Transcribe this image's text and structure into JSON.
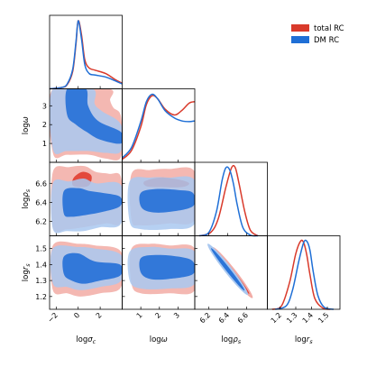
{
  "chart_data": {
    "type": "corner",
    "parameters": [
      {
        "key": "sigma",
        "label_main": "log",
        "label_sym": "σ",
        "label_sub": "c",
        "range": [
          -2.6,
          4.0
        ],
        "ticks": [
          -2,
          0,
          2
        ],
        "tick_labels": [
          "−2",
          "0",
          "2"
        ]
      },
      {
        "key": "omega",
        "label_main": "log",
        "label_sym": "ω",
        "label_sub": "",
        "range": [
          0.0,
          3.9
        ],
        "ticks": [
          1,
          2,
          3
        ],
        "tick_labels": [
          "1",
          "2",
          "3"
        ]
      },
      {
        "key": "rho",
        "label_main": "log",
        "label_sym": "ρ",
        "label_sub": "s",
        "range": [
          6.05,
          6.82
        ],
        "ticks": [
          6.2,
          6.4,
          6.6
        ],
        "tick_labels": [
          "6.2",
          "6.4",
          "6.6"
        ]
      },
      {
        "key": "rs",
        "label_main": "log",
        "label_sym": "r",
        "label_sub": "s",
        "range": [
          1.12,
          1.58
        ],
        "ticks": [
          1.2,
          1.3,
          1.4,
          1.5
        ],
        "tick_labels": [
          "1.2",
          "1.3",
          "1.4",
          "1.5"
        ]
      }
    ],
    "series": [
      {
        "name": "total RC",
        "color": "#d93a2b",
        "fill_light": "#f2aba5",
        "fill_dark": "#e14236",
        "marginals": {
          "sigma": {
            "x": [
              -2.6,
              -1.5,
              -1.0,
              -0.5,
              -0.2,
              0.0,
              0.3,
              0.6,
              1.0,
              1.5,
              2.5,
              3.3,
              4.0
            ],
            "y": [
              0.0,
              0.02,
              0.06,
              0.25,
              0.65,
              0.98,
              0.78,
              0.42,
              0.3,
              0.27,
              0.22,
              0.14,
              0.08
            ]
          },
          "omega": {
            "x": [
              0.0,
              0.5,
              1.0,
              1.3,
              1.6,
              1.9,
              2.3,
              2.8,
              3.2,
              3.6,
              3.9
            ],
            "y": [
              0.04,
              0.16,
              0.48,
              0.78,
              0.9,
              0.86,
              0.72,
              0.64,
              0.7,
              0.8,
              0.82
            ]
          },
          "rho": {
            "x": [
              6.1,
              6.22,
              6.3,
              6.38,
              6.44,
              6.48,
              6.52,
              6.58,
              6.64,
              6.72
            ],
            "y": [
              0.0,
              0.05,
              0.25,
              0.7,
              0.98,
              0.98,
              0.75,
              0.35,
              0.08,
              0.0
            ]
          },
          "rs": {
            "x": [
              1.15,
              1.21,
              1.26,
              1.3,
              1.33,
              1.35,
              1.37,
              1.39,
              1.42,
              1.47,
              1.52
            ],
            "y": [
              0.0,
              0.05,
              0.38,
              0.8,
              0.98,
              0.96,
              0.78,
              0.5,
              0.16,
              0.02,
              0.0
            ]
          }
        }
      },
      {
        "name": "DM RC",
        "color": "#1f6fd6",
        "fill_light": "#a9c8f0",
        "fill_dark": "#2b74d8",
        "marginals": {
          "sigma": {
            "x": [
              -2.6,
              -1.5,
              -1.0,
              -0.5,
              -0.2,
              0.0,
              0.3,
              0.6,
              1.0,
              1.5,
              2.5,
              3.3,
              4.0
            ],
            "y": [
              0.0,
              0.02,
              0.07,
              0.28,
              0.68,
              0.98,
              0.72,
              0.35,
              0.22,
              0.2,
              0.17,
              0.12,
              0.07
            ]
          },
          "omega": {
            "x": [
              0.0,
              0.5,
              1.0,
              1.3,
              1.6,
              1.9,
              2.3,
              2.8,
              3.2,
              3.6,
              3.9
            ],
            "y": [
              0.06,
              0.2,
              0.55,
              0.82,
              0.92,
              0.86,
              0.7,
              0.6,
              0.56,
              0.55,
              0.56
            ]
          },
          "rho": {
            "x": [
              6.1,
              6.2,
              6.28,
              6.34,
              6.38,
              6.42,
              6.46,
              6.5,
              6.56,
              6.64,
              6.72
            ],
            "y": [
              0.0,
              0.05,
              0.35,
              0.8,
              0.98,
              0.95,
              0.75,
              0.45,
              0.12,
              0.01,
              0.0
            ]
          },
          "rs": {
            "x": [
              1.17,
              1.24,
              1.28,
              1.32,
              1.35,
              1.37,
              1.39,
              1.41,
              1.44,
              1.48,
              1.54
            ],
            "y": [
              0.0,
              0.05,
              0.28,
              0.7,
              0.96,
              0.98,
              0.85,
              0.55,
              0.2,
              0.03,
              0.0
            ]
          }
        }
      }
    ],
    "legend": {
      "placement": "top-right"
    }
  }
}
